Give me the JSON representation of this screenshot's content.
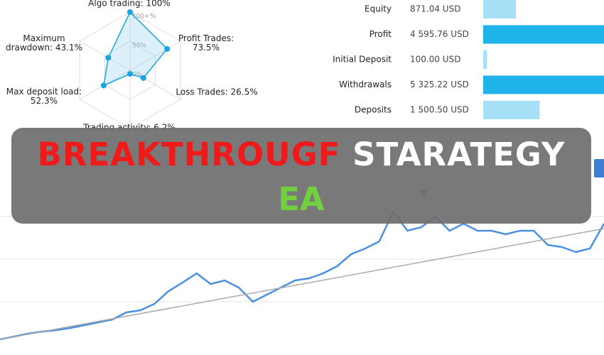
{
  "chart_data": [
    {
      "type": "radar",
      "categories": [
        "Algo trading: 100%",
        "Profit Trades:\n73.5%",
        "Loss Trades: 26.5%",
        "Trading activity: 6.2%",
        "Max deposit load:\n52.3%",
        "Maximum\ndrawdown: 43.1%"
      ],
      "values": [
        100,
        73.5,
        26.5,
        6.2,
        52.3,
        43.1
      ],
      "rlim": [
        0,
        100
      ],
      "rticks": [
        {
          "value": 0,
          "label": "0%"
        },
        {
          "value": 50,
          "label": "50%"
        },
        {
          "value": 100,
          "label": "100+%"
        }
      ],
      "color": "#1aa3df"
    },
    {
      "type": "hbar",
      "categories": [
        "Equity",
        "Profit",
        "Initial Deposit",
        "Withdrawals",
        "Deposits"
      ],
      "values": [
        871.04,
        4595.76,
        100.0,
        5325.22,
        1500.5
      ],
      "value_labels": [
        "871.04 USD",
        "4 595.76 USD",
        "100.00 USD",
        "5 325.22 USD",
        "1 500.50 USD"
      ],
      "colors": [
        "#a6e0f7",
        "#1fb3ea",
        "#a6e0f7",
        "#1fb3ea",
        "#a6e0f7"
      ]
    },
    {
      "type": "line",
      "ylim": [
        0,
        190
      ],
      "yticks": [
        55,
        115,
        175
      ],
      "grid": true,
      "series": [
        {
          "color": "#4a8fe0",
          "values": [
            2,
            6,
            10,
            13,
            15,
            18,
            22,
            26,
            30,
            40,
            43,
            52,
            70,
            82,
            95,
            80,
            85,
            75,
            55,
            65,
            75,
            85,
            88,
            95,
            105,
            122,
            130,
            140,
            182,
            155,
            160,
            175,
            155,
            165,
            155,
            155,
            150,
            155,
            155,
            135,
            132,
            125,
            130,
            165
          ]
        },
        {
          "color": "#aaaaaa",
          "values": [
            2,
            158
          ]
        }
      ]
    }
  ],
  "banner": {
    "line1": [
      "BREAKTHROUGF",
      "STARATEGY"
    ],
    "line2": "EA"
  }
}
